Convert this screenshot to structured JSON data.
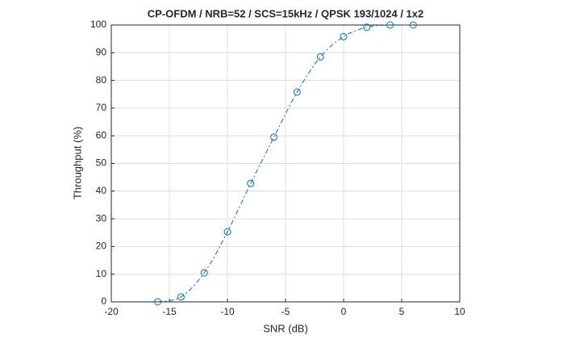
{
  "chart_data": {
    "type": "line",
    "title": "CP-OFDM / NRB=52 / SCS=15kHz / QPSK 193/1024 / 1x2",
    "x_label": "SNR (dB)",
    "y_label": "Throughput (%)",
    "x": [
      -16,
      -14,
      -12,
      -10,
      -8,
      -6,
      -4,
      -2,
      0,
      2,
      4,
      6
    ],
    "series": [
      {
        "name": "Throughput",
        "color": "#0072bd",
        "values": [
          0,
          1.8,
          10.5,
          25.3,
          42.8,
          59.5,
          75.8,
          88.5,
          95.8,
          99.2,
          100,
          100
        ]
      }
    ],
    "xlim": [
      -20,
      10
    ],
    "xticks": [
      -20,
      -15,
      -10,
      -5,
      0,
      5,
      10
    ],
    "ylim": [
      0,
      100
    ],
    "yticks": [
      0,
      10,
      20,
      30,
      40,
      50,
      60,
      70,
      80,
      90,
      100
    ],
    "grid": true
  }
}
